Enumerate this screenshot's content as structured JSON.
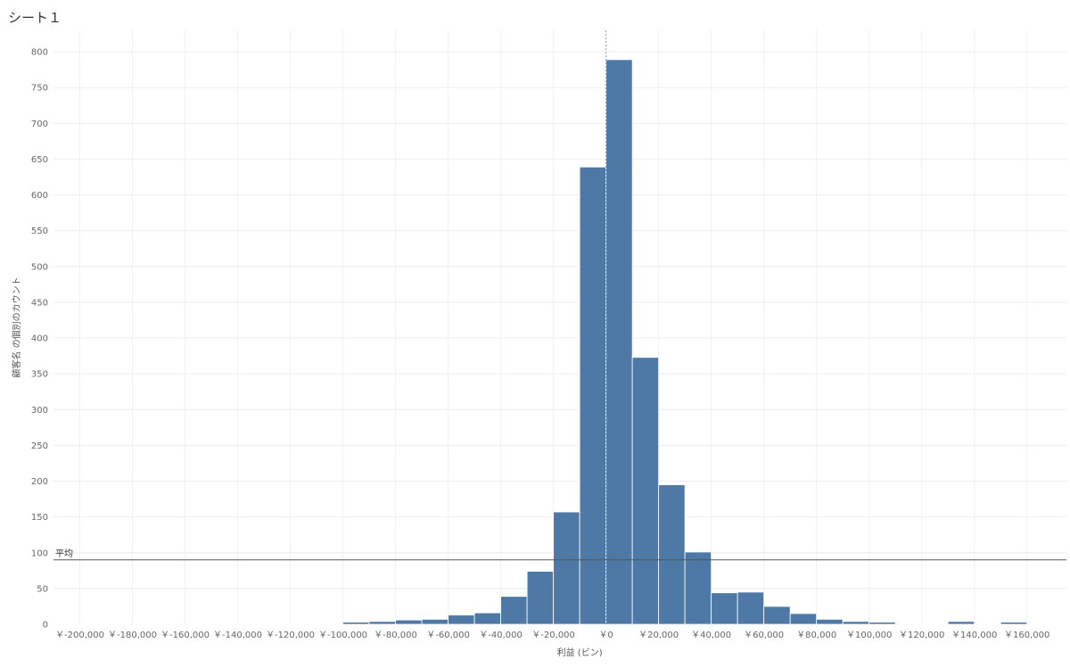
{
  "sheet": {
    "title": "シート１"
  },
  "chart_data": {
    "type": "bar",
    "xlabel": "利益 (ビン)",
    "ylabel": "顧客名 の個別のカウント",
    "bin_width": 10000,
    "xlim": [
      -210000,
      175000
    ],
    "ylim": [
      0,
      830
    ],
    "x_ticks": [
      -200000,
      -180000,
      -160000,
      -140000,
      -120000,
      -100000,
      -80000,
      -60000,
      -40000,
      -20000,
      0,
      20000,
      40000,
      60000,
      80000,
      100000,
      120000,
      140000,
      160000
    ],
    "x_tick_labels": [
      "￥-200,000",
      "￥-180,000",
      "￥-160,000",
      "￥-140,000",
      "￥-120,000",
      "￥-100,000",
      "￥-80,000",
      "￥-60,000",
      "￥-40,000",
      "￥-20,000",
      "￥0",
      "￥20,000",
      "￥40,000",
      "￥60,000",
      "￥80,000",
      "￥100,000",
      "￥120,000",
      "￥140,000",
      "￥160,000"
    ],
    "y_ticks": [
      0,
      50,
      100,
      150,
      200,
      250,
      300,
      350,
      400,
      450,
      500,
      550,
      600,
      650,
      700,
      750,
      800
    ],
    "y_tick_labels": [
      "0",
      "50",
      "100",
      "150",
      "200",
      "250",
      "300",
      "350",
      "400",
      "450",
      "500",
      "550",
      "600",
      "650",
      "700",
      "750",
      "800"
    ],
    "bins": [
      {
        "x": -190000,
        "value": 1
      },
      {
        "x": -180000,
        "value": 1
      },
      {
        "x": -140000,
        "value": 1
      },
      {
        "x": -130000,
        "value": 1
      },
      {
        "x": -110000,
        "value": 1
      },
      {
        "x": -100000,
        "value": 3
      },
      {
        "x": -90000,
        "value": 4
      },
      {
        "x": -80000,
        "value": 6
      },
      {
        "x": -70000,
        "value": 7
      },
      {
        "x": -60000,
        "value": 13
      },
      {
        "x": -50000,
        "value": 16
      },
      {
        "x": -40000,
        "value": 39
      },
      {
        "x": -30000,
        "value": 74
      },
      {
        "x": -20000,
        "value": 157
      },
      {
        "x": -10000,
        "value": 639
      },
      {
        "x": 0,
        "value": 789
      },
      {
        "x": 10000,
        "value": 373
      },
      {
        "x": 20000,
        "value": 195
      },
      {
        "x": 30000,
        "value": 101
      },
      {
        "x": 40000,
        "value": 44
      },
      {
        "x": 50000,
        "value": 45
      },
      {
        "x": 60000,
        "value": 25
      },
      {
        "x": 70000,
        "value": 15
      },
      {
        "x": 80000,
        "value": 7
      },
      {
        "x": 90000,
        "value": 4
      },
      {
        "x": 100000,
        "value": 3
      },
      {
        "x": 110000,
        "value": 1
      },
      {
        "x": 130000,
        "value": 4
      },
      {
        "x": 150000,
        "value": 3
      }
    ],
    "reference_line": {
      "label": "平均",
      "value": 90
    },
    "grid": true,
    "bar_color": "#4E79A7"
  }
}
